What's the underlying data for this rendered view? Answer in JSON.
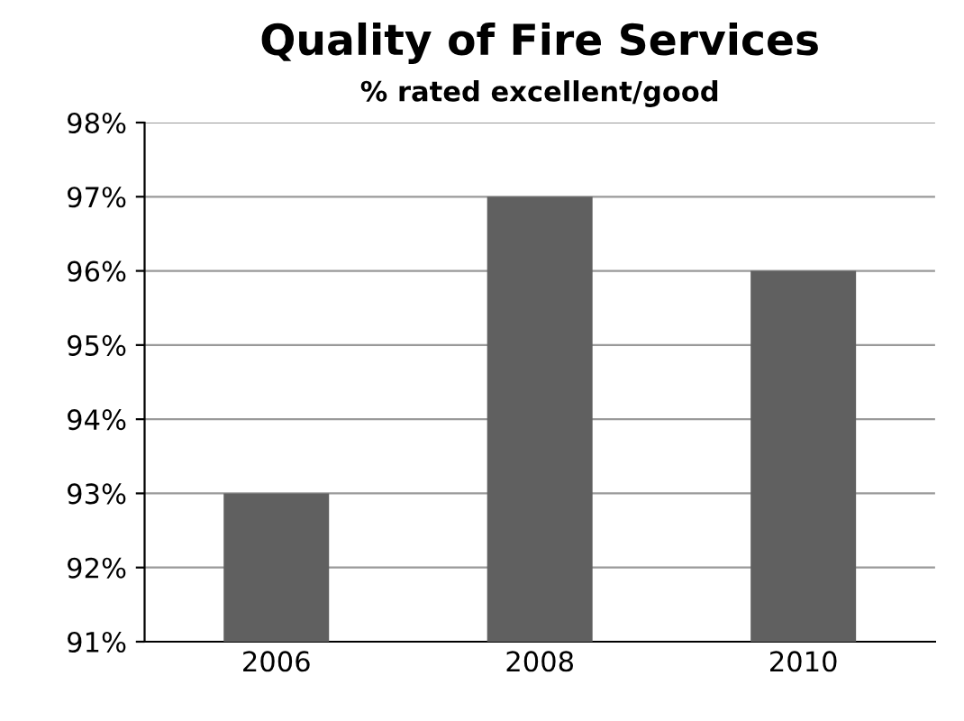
{
  "chart_data": {
    "type": "bar",
    "title": "Quality of Fire Services",
    "subtitle": "% rated excellent/good",
    "categories": [
      "2006",
      "2008",
      "2010"
    ],
    "values": [
      93,
      97,
      96
    ],
    "color": "#606060",
    "ylim": [
      91,
      98
    ],
    "yticks": [
      {
        "value": 91,
        "label": "91%"
      },
      {
        "value": 92,
        "label": "92%"
      },
      {
        "value": 93,
        "label": "93%"
      },
      {
        "value": 94,
        "label": "94%"
      },
      {
        "value": 95,
        "label": "95%"
      },
      {
        "value": 96,
        "label": "96%"
      },
      {
        "value": 97,
        "label": "97%"
      },
      {
        "value": 98,
        "label": "98%"
      }
    ],
    "grid": "y",
    "legend": false
  }
}
